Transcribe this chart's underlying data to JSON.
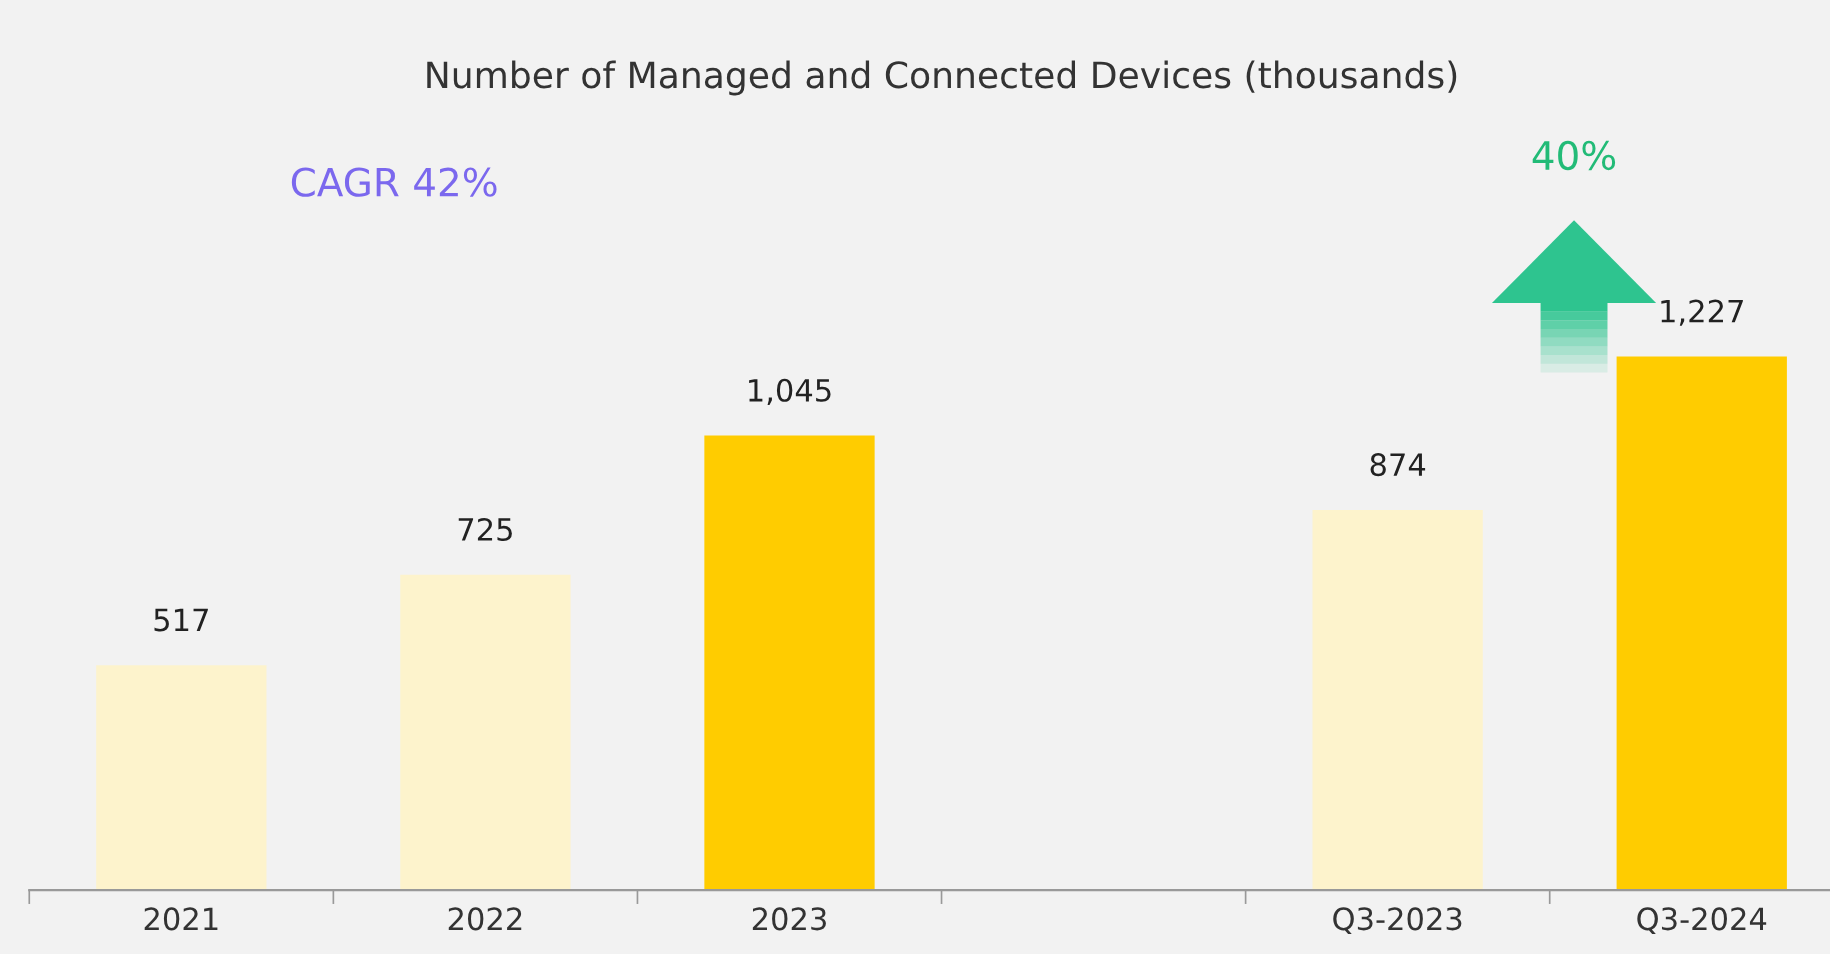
{
  "chart_data": {
    "type": "bar",
    "title": "Number of Managed and Connected Devices (thousands)",
    "categories": [
      "2021",
      "2022",
      "2023",
      null,
      "Q3-2023",
      "Q3-2024"
    ],
    "values": [
      517,
      725,
      1045,
      null,
      874,
      1227
    ],
    "colors": [
      "#fdf3cc",
      "#fdf3cc",
      "#ffcc00",
      null,
      "#fdf3cc",
      "#ffcc00"
    ],
    "data_labels": true,
    "value_labels": [
      "517",
      "725",
      "1,045",
      null,
      "874",
      "1,227"
    ],
    "annotations": [
      "CAGR 42%",
      "40%"
    ],
    "grid": false,
    "legend": false
  }
}
